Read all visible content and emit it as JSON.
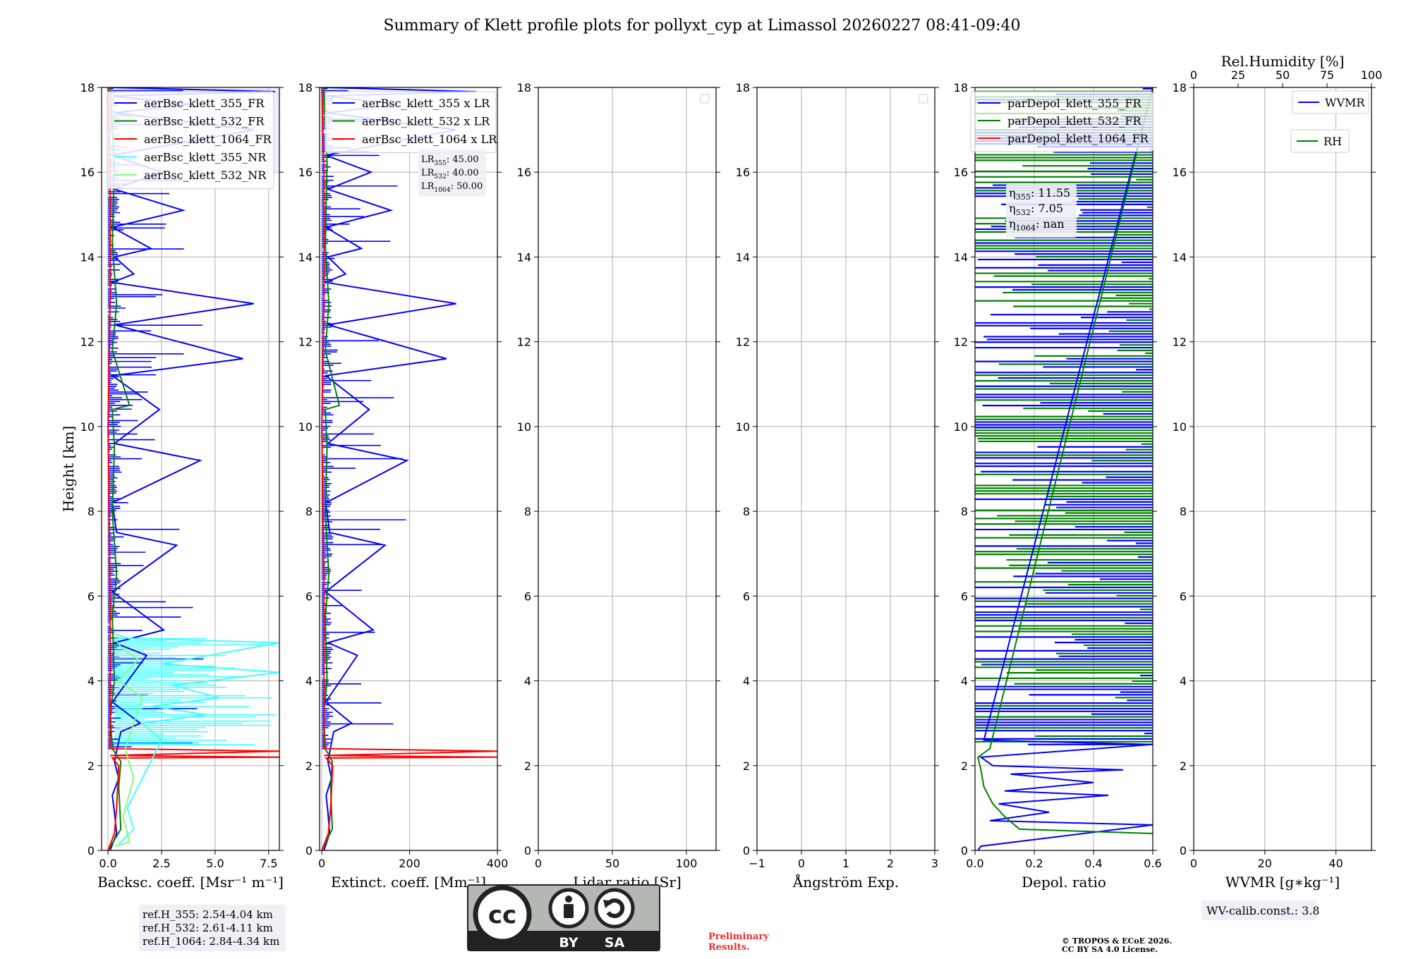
{
  "title": "Summary of Klett profile plots for pollyxt_cyp at Limassol 20260227 08:41-09:40",
  "colors": {
    "c355": "#0000ff",
    "c532": "#008000",
    "c1064": "#ff0000",
    "cNR355": "#40ffff",
    "cNR532": "#80ff80",
    "grid": "#b0b0b0"
  },
  "chart_data": [
    {
      "type": "line",
      "id": "bsc",
      "xlabel": "Backsc. coeff. [Msr$^{-1}$ m$^{-1}$]",
      "xlabel_display": "Backsc. coeff. [Msr⁻¹ m⁻¹]",
      "ylabel": "Height [km]",
      "xlim": [
        -0.3,
        8.0
      ],
      "ylim": [
        0,
        18
      ],
      "xticks": [
        0.0,
        2.5,
        5.0,
        7.5
      ],
      "xtick_labels": [
        "0.0",
        "2.5",
        "5.0",
        "7.5"
      ],
      "yticks": [
        0,
        2,
        4,
        6,
        8,
        10,
        12,
        14,
        16,
        18
      ],
      "legend": [
        "aerBsc_klett_355_FR",
        "aerBsc_klett_532_FR",
        "aerBsc_klett_1064_FR",
        "aerBsc_klett_355_NR",
        "aerBsc_klett_532_NR"
      ],
      "series": [
        {
          "name": "aerBsc_klett_355_FR",
          "color": "#0000ff",
          "x": [
            0.1,
            0.4,
            0.3,
            0.2,
            0.5,
            0.3,
            0.6,
            1.5,
            0.2,
            1.8,
            0.3,
            2.6,
            0.2,
            3.2,
            0.4,
            0.2,
            4.3,
            0.3,
            2.4,
            0.2,
            6.3,
            0.3,
            6.8,
            0.2,
            1.2,
            0.3,
            2.0,
            0.2,
            3.5,
            0.3,
            2.5,
            0.2,
            6.8,
            0.3,
            3.8,
            0.2,
            7.8,
            0.1
          ],
          "y": [
            0.0,
            0.4,
            0.9,
            1.3,
            1.7,
            2.1,
            2.8,
            3.0,
            3.5,
            4.6,
            4.9,
            5.2,
            6.1,
            7.2,
            7.5,
            8.2,
            9.2,
            9.6,
            10.4,
            11.2,
            11.6,
            12.4,
            12.9,
            13.4,
            13.6,
            14.0,
            14.2,
            14.7,
            15.1,
            15.6,
            16.0,
            16.4,
            17.0,
            17.4,
            17.6,
            17.8,
            17.9,
            18.0
          ]
        },
        {
          "name": "aerBsc_klett_532_FR",
          "color": "#008000",
          "x": [
            0.0,
            0.6,
            0.5,
            0.6,
            0.2,
            0.1,
            0.3,
            0.2,
            0.4,
            0.2,
            0.3,
            0.2,
            1.0,
            0.2,
            0.4,
            0.2,
            0.3,
            0.1
          ],
          "y": [
            0.0,
            0.5,
            1.5,
            2.1,
            2.4,
            3.2,
            4.0,
            5.5,
            6.5,
            8.0,
            9.5,
            10.4,
            10.5,
            11.8,
            12.9,
            14.3,
            16.2,
            18.0
          ]
        },
        {
          "name": "aerBsc_klett_1064_FR",
          "color": "#ff0000",
          "x": [
            0.0,
            0.3,
            0.4,
            0.5,
            0.2,
            8.0,
            0.1,
            8.0,
            0.1,
            0.1,
            0.0,
            0.1,
            0.1,
            0.0
          ],
          "y": [
            0.0,
            0.4,
            1.0,
            2.0,
            2.18,
            2.2,
            2.24,
            2.34,
            2.4,
            6.0,
            10.0,
            13.0,
            16.0,
            18.0
          ]
        },
        {
          "name": "aerBsc_klett_355_NR",
          "color": "#40ffff",
          "x": [
            0.5,
            1.2,
            0.9,
            1.5,
            2.5,
            1.6,
            4.6,
            2.0,
            5.2,
            3.0,
            8.0,
            2.5,
            8.0,
            1.0,
            0.3
          ],
          "y": [
            0.15,
            0.5,
            1.0,
            1.6,
            2.6,
            3.0,
            3.2,
            3.4,
            3.6,
            3.9,
            4.2,
            4.4,
            4.9,
            5.0,
            5.1
          ]
        },
        {
          "name": "aerBsc_klett_532_NR",
          "color": "#80ff80",
          "x": [
            0.3,
            1.0,
            0.7,
            1.2,
            0.8,
            1.6,
            0.5,
            1.4,
            0.6,
            0.3
          ],
          "y": [
            0.1,
            0.2,
            0.8,
            1.7,
            2.4,
            3.6,
            4.0,
            4.5,
            4.8,
            5.0
          ]
        }
      ],
      "annotation": [
        "ref.H_355: 2.54-4.04 km",
        "ref.H_532: 2.61-4.11 km",
        "ref.H_1064: 2.84-4.34 km"
      ]
    },
    {
      "type": "line",
      "id": "ext",
      "xlabel": "Extinct. coeff. [Mm$^{-1}$]",
      "xlabel_display": "Extinct. coeff. [Mm⁻¹]",
      "xlim": [
        -5,
        400
      ],
      "ylim": [
        0,
        18
      ],
      "xticks": [
        0,
        200,
        400
      ],
      "xtick_labels": [
        "0",
        "200",
        "400"
      ],
      "yticks": [
        0,
        2,
        4,
        6,
        8,
        10,
        12,
        14,
        16,
        18
      ],
      "legend": [
        "aerBsc_klett_355 x LR",
        "aerBsc_klett_532 x LR",
        "aerBsc_klett_1064 x LR"
      ],
      "series": [
        {
          "name": "aerBsc_klett_355 x LR",
          "color": "#0000ff",
          "x": [
            5,
            18,
            14,
            10,
            22,
            14,
            27,
            68,
            9,
            81,
            14,
            117,
            9,
            144,
            18,
            9,
            194,
            14,
            108,
            9,
            284,
            14,
            306,
            9,
            54,
            14,
            90,
            9,
            157,
            14,
            112,
            9,
            306,
            14,
            171,
            9,
            351,
            5
          ],
          "y": [
            0.0,
            0.4,
            0.9,
            1.3,
            1.7,
            2.1,
            2.8,
            3.0,
            3.5,
            4.6,
            4.9,
            5.2,
            6.1,
            7.2,
            7.5,
            8.2,
            9.2,
            9.6,
            10.4,
            11.2,
            11.6,
            12.4,
            12.9,
            13.4,
            13.6,
            14.0,
            14.2,
            14.7,
            15.1,
            15.6,
            16.0,
            16.4,
            17.0,
            17.4,
            17.6,
            17.8,
            17.9,
            18.0
          ]
        },
        {
          "name": "aerBsc_klett_532 x LR",
          "color": "#008000",
          "x": [
            0,
            24,
            20,
            24,
            8,
            4,
            12,
            8,
            16,
            8,
            12,
            8,
            40,
            8,
            16,
            8,
            12,
            4
          ],
          "y": [
            0.0,
            0.5,
            1.5,
            2.1,
            2.4,
            3.2,
            4.0,
            5.5,
            6.5,
            8.0,
            9.5,
            10.4,
            10.5,
            11.8,
            12.9,
            14.3,
            16.2,
            18.0
          ]
        },
        {
          "name": "aerBsc_klett_1064 x LR",
          "color": "#ff0000",
          "x": [
            0,
            15,
            20,
            25,
            10,
            400,
            5,
            400,
            5,
            5,
            0,
            5,
            5,
            0
          ],
          "y": [
            0.0,
            0.4,
            1.0,
            2.0,
            2.18,
            2.2,
            2.24,
            2.34,
            2.4,
            6.0,
            10.0,
            13.0,
            16.0,
            18.0
          ]
        }
      ],
      "annotation": [
        "LR355: 45.00",
        "LR532: 40.00",
        "LR1064: 50.00"
      ]
    },
    {
      "type": "line",
      "id": "lr",
      "xlabel": "Lidar ratio [Sr]",
      "xlim": [
        0,
        120
      ],
      "ylim": [
        0,
        18
      ],
      "xticks": [
        0,
        50,
        100
      ],
      "xtick_labels": [
        "0",
        "50",
        "100"
      ],
      "yticks": [
        0,
        2,
        4,
        6,
        8,
        10,
        12,
        14,
        16,
        18
      ],
      "series": []
    },
    {
      "type": "line",
      "id": "ang",
      "xlabel": "Ångström Exp.",
      "xlim": [
        -1,
        3
      ],
      "ylim": [
        0,
        18
      ],
      "xticks": [
        -1,
        0,
        1,
        2,
        3
      ],
      "xtick_labels": [
        "−1",
        "0",
        "1",
        "2",
        "3"
      ],
      "yticks": [
        0,
        2,
        4,
        6,
        8,
        10,
        12,
        14,
        16,
        18
      ],
      "series": []
    },
    {
      "type": "line",
      "id": "depol",
      "xlabel": "Depol. ratio",
      "xlim": [
        0,
        0.6
      ],
      "ylim": [
        0,
        18
      ],
      "xticks": [
        0.0,
        0.2,
        0.4,
        0.6
      ],
      "xtick_labels": [
        "0.0",
        "0.2",
        "0.4",
        "0.6"
      ],
      "yticks": [
        0,
        2,
        4,
        6,
        8,
        10,
        12,
        14,
        16,
        18
      ],
      "legend": [
        "parDepol_klett_355_FR",
        "parDepol_klett_532_FR",
        "parDepol_klett_1064_FR"
      ],
      "series": [
        {
          "name": "parDepol_klett_355_FR",
          "color": "#0000ff",
          "x": [
            0.01,
            0.02,
            0.6,
            0.05,
            0.25,
            0.08,
            0.45,
            0.1,
            0.4,
            0.12,
            0.5,
            0.06,
            0.02,
            0.6,
            0.03,
            0.6
          ],
          "y": [
            0.0,
            0.1,
            0.6,
            0.7,
            0.9,
            1.1,
            1.3,
            1.4,
            1.6,
            1.8,
            1.9,
            2.0,
            2.2,
            2.5,
            2.6,
            18.0
          ]
        },
        {
          "name": "parDepol_klett_532_FR",
          "color": "#008000",
          "x": [
            0.6,
            0.15,
            0.1,
            0.06,
            0.03,
            0.02,
            0.01,
            0.05,
            0.6
          ],
          "y": [
            0.4,
            0.5,
            0.8,
            1.1,
            1.5,
            1.9,
            2.2,
            2.4,
            18.0
          ]
        },
        {
          "name": "parDepol_klett_1064_FR",
          "color": "#ff0000",
          "x": [],
          "y": []
        }
      ],
      "annotation": [
        "η355: 11.55",
        "η532: 7.05",
        "η1064: nan"
      ]
    },
    {
      "type": "line",
      "id": "wv",
      "xlabel": "WVMR [$g*kg^{-1}$]",
      "xlabel_display": "WVMR [g∗kg⁻¹]",
      "x2label": "Rel.Humidity [%]",
      "xlim": [
        0,
        50
      ],
      "ylim": [
        0,
        18
      ],
      "xticks": [
        0,
        20,
        40
      ],
      "xtick_labels": [
        "0",
        "20",
        "40"
      ],
      "x2lim": [
        0,
        100
      ],
      "x2ticks": [
        0,
        25,
        50,
        75,
        100
      ],
      "x2tick_labels": [
        "0",
        "25",
        "50",
        "75",
        "100"
      ],
      "yticks": [
        0,
        2,
        4,
        6,
        8,
        10,
        12,
        14,
        16,
        18
      ],
      "legend": [
        "WVMR",
        "RH"
      ],
      "series": [],
      "annotation": [
        "WV-calib.const.: 3.8"
      ]
    }
  ],
  "license": {
    "cc": "cc",
    "by": "BY",
    "sa": "SA"
  },
  "footer": {
    "preliminary_1": "Preliminary",
    "preliminary_2": "Results.",
    "copyright_1": "© TROPOS & ECoE 2026.",
    "copyright_2": "CC BY SA 4.0 License."
  }
}
